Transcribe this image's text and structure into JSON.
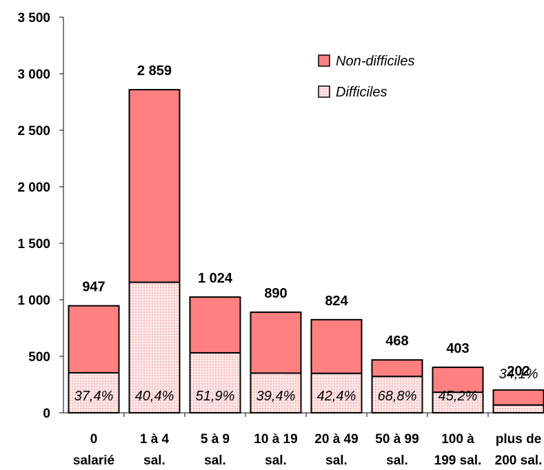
{
  "colors": {
    "non_difficiles": "#ff8080",
    "difficiles_bg": "#ffe6e6",
    "difficiles_dot": "#e88a8a",
    "outline": "#000000"
  },
  "chart_data": {
    "type": "bar",
    "stacked": true,
    "categories": [
      [
        "0",
        "salarié"
      ],
      [
        "1 à 4",
        "sal."
      ],
      [
        "5 à 9",
        "sal."
      ],
      [
        "10 à 19",
        "sal."
      ],
      [
        "20 à 49",
        "sal."
      ],
      [
        "50 à 99",
        "sal."
      ],
      [
        "100 à",
        "199 sal."
      ],
      [
        "plus de",
        "200 sal."
      ]
    ],
    "totals": [
      947,
      2859,
      1024,
      890,
      824,
      468,
      403,
      202
    ],
    "total_labels": [
      "947",
      "2 859",
      "1 024",
      "890",
      "824",
      "468",
      "403",
      "202"
    ],
    "pct_labels": [
      "37,4%",
      "40,4%",
      "51,9%",
      "39,4%",
      "42,4%",
      "68,8%",
      "45,2%",
      "34,1%"
    ],
    "series": [
      {
        "name": "Difficiles",
        "values": [
          354,
          1155,
          531,
          351,
          349,
          322,
          182,
          69
        ]
      },
      {
        "name": "Non-difficiles",
        "values": [
          593,
          1704,
          493,
          539,
          475,
          146,
          221,
          133
        ]
      }
    ],
    "legend": [
      "Non-difficiles",
      "Difficiles"
    ],
    "legend_position": "top-right",
    "ylim": [
      0,
      3500
    ],
    "yticks": [
      0,
      500,
      1000,
      1500,
      2000,
      2500,
      3000,
      3500
    ],
    "ytick_labels": [
      "0",
      "500",
      "1 000",
      "1 500",
      "2 000",
      "2 500",
      "3 000",
      "3 500"
    ],
    "grid": false
  }
}
